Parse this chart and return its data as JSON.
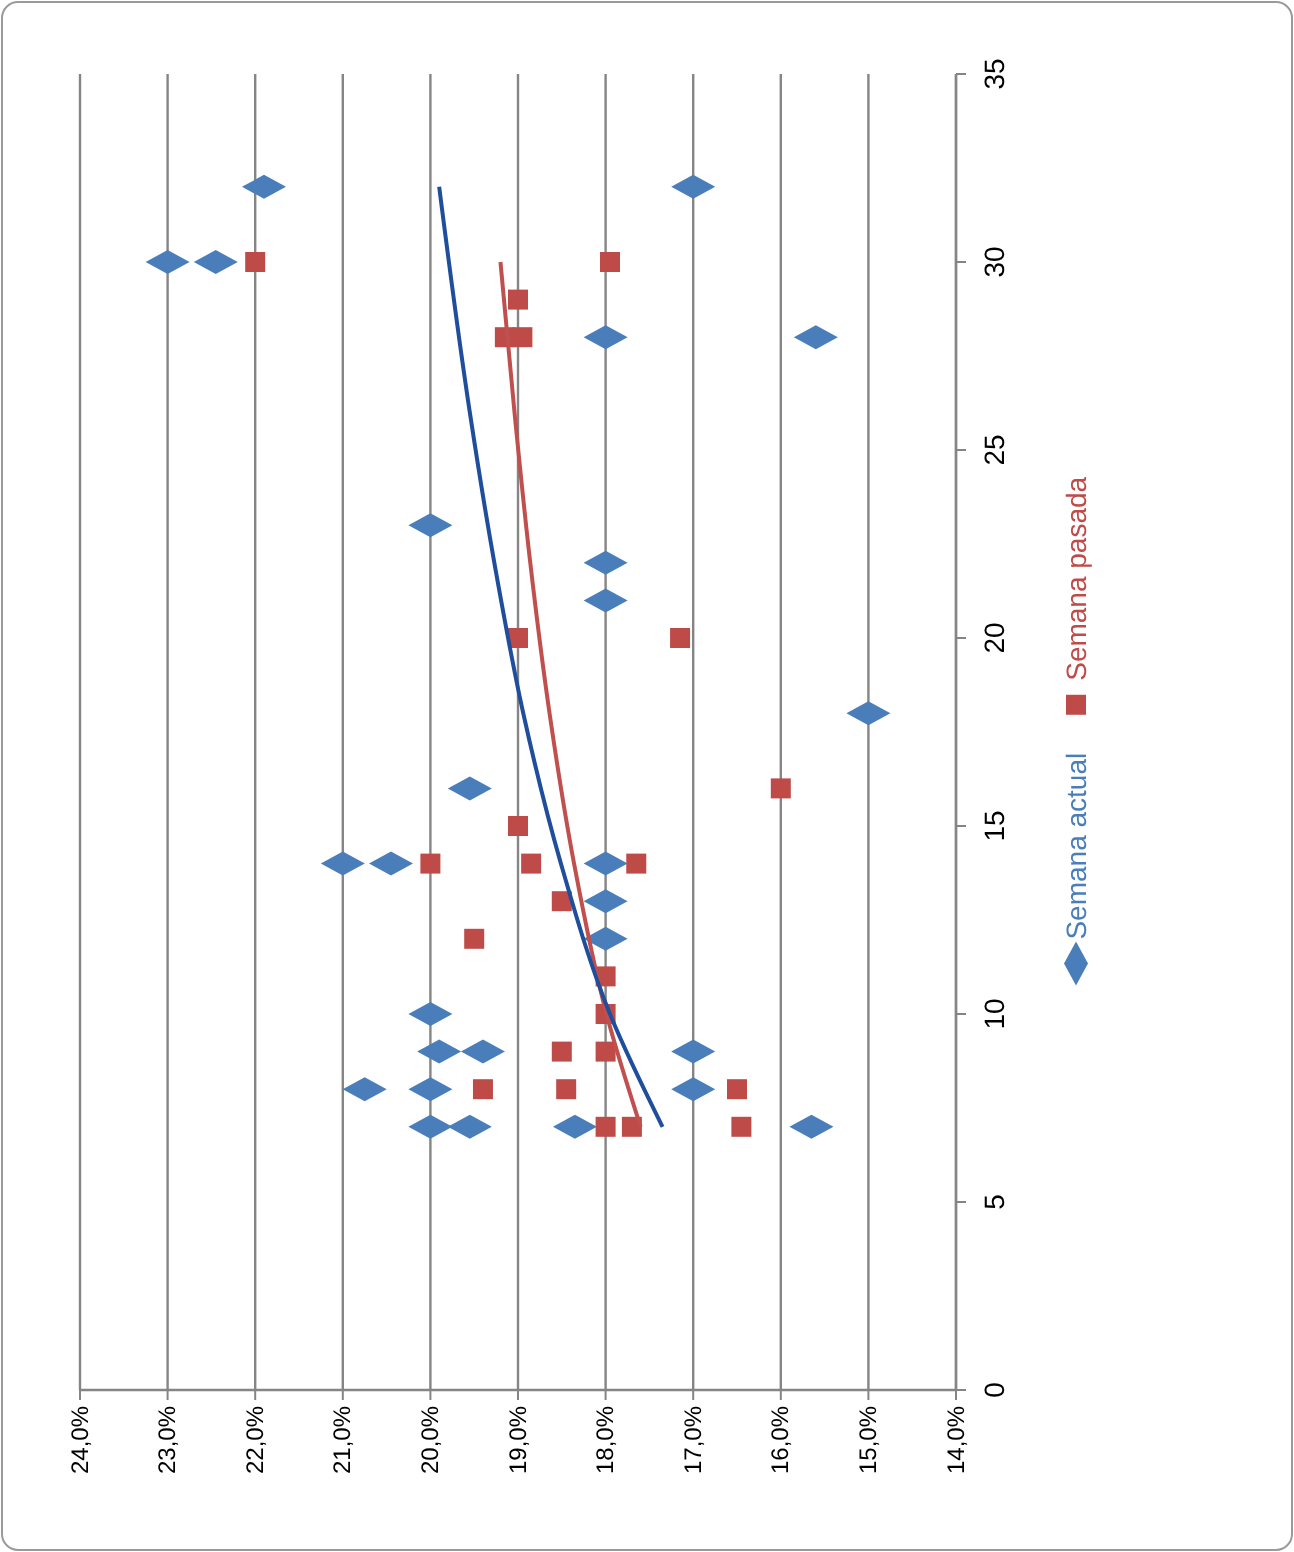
{
  "chart_data": {
    "type": "scatter",
    "xlim": [
      24,
      14
    ],
    "xticks": [
      {
        "value": 24,
        "label": "24,0%"
      },
      {
        "value": 23,
        "label": "23,0%"
      },
      {
        "value": 22,
        "label": "22,0%"
      },
      {
        "value": 21,
        "label": "21,0%"
      },
      {
        "value": 20,
        "label": "20,0%"
      },
      {
        "value": 19,
        "label": "19,0%"
      },
      {
        "value": 18,
        "label": "18,0%"
      },
      {
        "value": 17,
        "label": "17,0%"
      },
      {
        "value": 16,
        "label": "16,0%"
      },
      {
        "value": 15,
        "label": "15,0%"
      },
      {
        "value": 14,
        "label": "14,0%"
      }
    ],
    "ylim": [
      0,
      35
    ],
    "yticks": [
      0,
      5,
      10,
      15,
      20,
      25,
      30,
      35
    ],
    "grid": "x",
    "legend": "right",
    "series": [
      {
        "name": "Semana actual",
        "marker": "diamond",
        "color": "#4a7ebb",
        "x": [
          23.0,
          22.45,
          21.9,
          17.0,
          18.0,
          15.6,
          20.0,
          18.0,
          18.0,
          15.0,
          19.55,
          21.0,
          20.45,
          18.0,
          18.0,
          18.0,
          20.0,
          19.9,
          19.4,
          17.0,
          20.75,
          20.0,
          17.0,
          20.0,
          19.55,
          18.35,
          15.65
        ],
        "values": [
          30,
          30,
          32,
          32,
          28,
          28,
          23,
          22,
          21,
          18,
          16,
          14,
          14,
          14,
          13,
          12,
          10,
          9,
          9,
          9,
          8,
          8,
          8,
          7,
          7,
          7,
          7
        ]
      },
      {
        "name": "Semana pasada",
        "marker": "square",
        "color": "#be4b48",
        "x": [
          22.0,
          17.95,
          19.0,
          19.15,
          18.95,
          19.0,
          17.15,
          16.0,
          20.0,
          18.85,
          17.65,
          19.0,
          18.5,
          19.5,
          18.0,
          18.0,
          18.5,
          18.0,
          19.4,
          18.45,
          16.5,
          18.0,
          17.7,
          16.45
        ],
        "values": [
          30,
          30,
          29,
          28,
          28,
          20,
          20,
          16,
          14,
          14,
          14,
          15,
          13,
          12,
          11,
          10,
          9,
          9,
          8,
          8,
          8,
          7,
          7,
          7
        ]
      },
      {
        "type": "line",
        "marker": "none",
        "color": "#c0504d",
        "x": [
          17.6,
          17.99,
          18.36,
          18.64,
          18.86,
          19.04,
          19.2
        ],
        "values": [
          7,
          10,
          14,
          18,
          22,
          26,
          30
        ]
      },
      {
        "type": "line",
        "marker": "none",
        "color": "#1f4e9c",
        "x": [
          17.35,
          17.95,
          18.51,
          18.94,
          19.27,
          19.55,
          19.9
        ],
        "values": [
          7,
          10,
          14,
          18,
          22,
          26,
          32
        ]
      }
    ]
  }
}
